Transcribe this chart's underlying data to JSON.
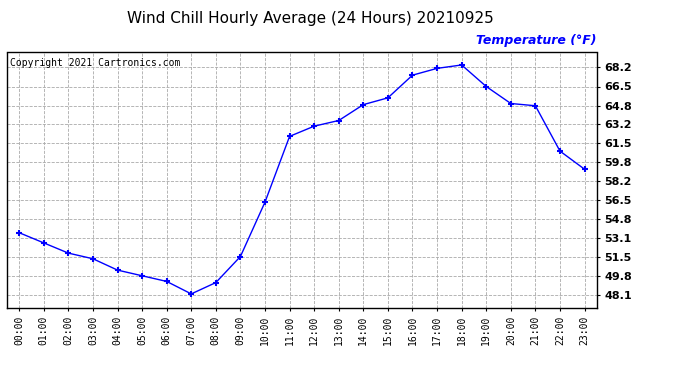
{
  "title": "Wind Chill Hourly Average (24 Hours) 20210925",
  "copyright_text": "Copyright 2021 Cartronics.com",
  "ylabel": "Temperature (°F)",
  "ylabel_color": "blue",
  "hours": [
    "00:00",
    "01:00",
    "02:00",
    "03:00",
    "04:00",
    "05:00",
    "06:00",
    "07:00",
    "08:00",
    "09:00",
    "10:00",
    "11:00",
    "12:00",
    "13:00",
    "14:00",
    "15:00",
    "16:00",
    "17:00",
    "18:00",
    "19:00",
    "20:00",
    "21:00",
    "22:00",
    "23:00"
  ],
  "values": [
    53.6,
    52.7,
    51.8,
    51.3,
    50.3,
    49.8,
    49.3,
    48.2,
    49.2,
    51.5,
    56.3,
    62.1,
    63.0,
    63.5,
    64.9,
    65.5,
    67.5,
    68.1,
    68.4,
    66.5,
    65.0,
    64.8,
    60.8,
    59.2
  ],
  "line_color": "blue",
  "marker": "+",
  "marker_size": 5,
  "marker_linewidth": 1.5,
  "ylim_min": 47.0,
  "ylim_max": 69.5,
  "yticks": [
    48.1,
    49.8,
    51.5,
    53.1,
    54.8,
    56.5,
    58.2,
    59.8,
    61.5,
    63.2,
    64.8,
    66.5,
    68.2
  ],
  "grid_color": "#aaaaaa",
  "grid_linestyle": "--",
  "bg_color": "white",
  "plot_bg_color": "white",
  "border_color": "black",
  "title_fontsize": 11,
  "copyright_fontsize": 7,
  "ylabel_fontsize": 9,
  "ytick_fontsize": 8,
  "xtick_fontsize": 7
}
